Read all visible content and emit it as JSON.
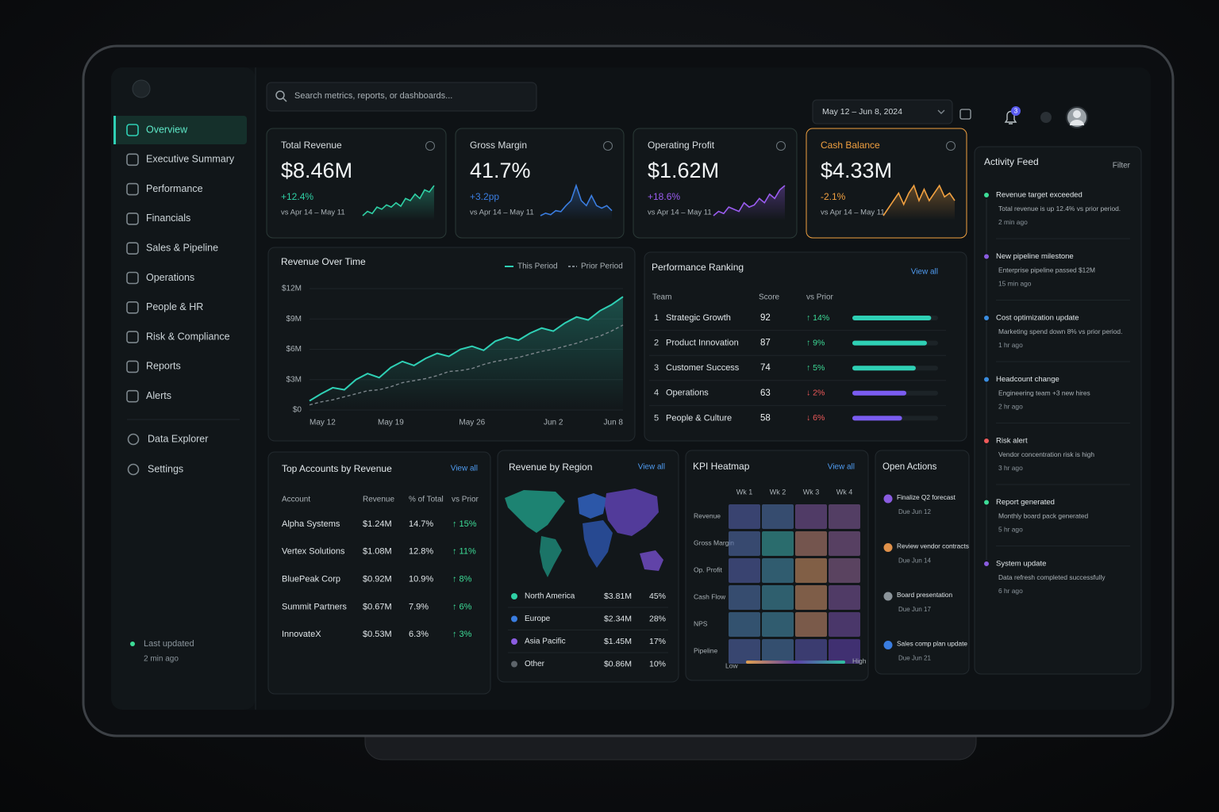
{
  "sidebar": {
    "nav_main": [
      "Overview",
      "Executive Summary",
      "Performance",
      "Financials",
      "Sales & Pipeline",
      "Operations",
      "People & HR",
      "Risk & Compliance",
      "Reports",
      "Alerts"
    ],
    "active": 0,
    "nav_secondary": [
      "Data Explorer",
      "Settings"
    ],
    "status": {
      "label": "Last updated",
      "time": "2 min ago",
      "color": "#3ddc97"
    }
  },
  "header": {
    "search_placeholder": "Search metrics, reports, or dashboards...",
    "date_range": "May 12 – Jun 8, 2024",
    "notification_count": 3
  },
  "kpi_cards": [
    {
      "title": "Total Revenue",
      "value": "$8.46M",
      "delta": "+12.4%",
      "compare": "vs Apr 14 – May 11",
      "color": "#2fd0a5",
      "highlight": false,
      "sparkline": [
        3,
        4,
        3.5,
        5,
        4.5,
        5.5,
        5,
        6,
        5.2,
        7,
        6.5,
        8,
        7,
        9,
        8.5,
        10
      ]
    },
    {
      "title": "Gross Margin",
      "value": "41.7%",
      "delta": "+3.2pp",
      "compare": "vs Apr 14 – May 11",
      "color": "#3a7de0",
      "highlight": false,
      "sparkline": [
        3,
        3.5,
        3.2,
        4,
        3.8,
        5,
        6,
        9,
        6,
        5,
        7,
        5,
        4.5,
        5,
        4
      ]
    },
    {
      "title": "Operating Profit",
      "value": "$1.62M",
      "delta": "+18.6%",
      "compare": "vs Apr 14 – May 11",
      "color": "#9a5cf0",
      "highlight": false,
      "sparkline": [
        2,
        3,
        2.5,
        4,
        3.5,
        3,
        5,
        4,
        4.5,
        6,
        5,
        7,
        6,
        8,
        9
      ]
    },
    {
      "title": "Cash Balance",
      "value": "$4.33M",
      "delta": "-2.1%",
      "compare": "vs Apr 14 – May 11",
      "color": "#f0a040",
      "highlight": true,
      "sparkline": [
        3,
        4,
        5,
        6,
        4.5,
        6,
        7,
        5,
        6.5,
        5,
        6,
        7,
        5.5,
        6,
        5
      ]
    }
  ],
  "revenue_chart": {
    "type": "line",
    "title": "Revenue Over Time",
    "x": [
      "May 12",
      null,
      null,
      null,
      null,
      null,
      null,
      "May 19",
      null,
      null,
      null,
      null,
      null,
      null,
      "May 26",
      null,
      null,
      null,
      null,
      null,
      null,
      "Jun 2",
      null,
      null,
      null,
      null,
      null,
      "Jun 8"
    ],
    "series": [
      {
        "name": "This Period",
        "color": "#2fd0b5",
        "dashed": false,
        "values": [
          0.9,
          1.6,
          2.2,
          2.0,
          3.0,
          3.6,
          3.2,
          4.2,
          4.8,
          4.4,
          5.1,
          5.6,
          5.3,
          6.0,
          6.3,
          5.9,
          6.8,
          7.2,
          6.9,
          7.6,
          8.1,
          7.8,
          8.6,
          9.2,
          8.9,
          9.8,
          10.4,
          11.2
        ]
      },
      {
        "name": "Prior Period",
        "color": "#7d868c",
        "dashed": true,
        "values": [
          0.5,
          0.8,
          1.0,
          1.3,
          1.6,
          1.9,
          2.0,
          2.3,
          2.7,
          2.9,
          3.1,
          3.4,
          3.8,
          3.9,
          4.1,
          4.5,
          4.8,
          5.0,
          5.2,
          5.5,
          5.8,
          6.0,
          6.3,
          6.6,
          7.0,
          7.3,
          7.8,
          8.4
        ]
      }
    ],
    "ylim": [
      0,
      12
    ],
    "yticks": [
      {
        "value": 0,
        "label": "$0"
      },
      {
        "value": 3,
        "label": "$3M"
      },
      {
        "value": 6,
        "label": "$6M"
      },
      {
        "value": 9,
        "label": "$9M"
      },
      {
        "value": 12,
        "label": "$12M"
      }
    ],
    "grid": true
  },
  "performance_ranking": {
    "title": "Performance Ranking",
    "link": "View all",
    "columns": [
      "Team",
      "Score",
      "vs Prior"
    ],
    "xlim": [
      0,
      100
    ],
    "rows": [
      {
        "rank": 1,
        "team": "Strategic Growth",
        "score": 92,
        "vs_prior": "↑ 14%",
        "delta_color": "#3ddc97",
        "bar_color": "#2fd0b5"
      },
      {
        "rank": 2,
        "team": "Product Innovation",
        "score": 87,
        "vs_prior": "↑ 9%",
        "delta_color": "#3ddc97",
        "bar_color": "#2fd0b5"
      },
      {
        "rank": 3,
        "team": "Customer Success",
        "score": 74,
        "vs_prior": "↑ 5%",
        "delta_color": "#3ddc97",
        "bar_color": "#2fd0b5"
      },
      {
        "rank": 4,
        "team": "Operations",
        "score": 63,
        "vs_prior": "↓ 2%",
        "delta_color": "#f05a5a",
        "bar_color": "#7a5cf0"
      },
      {
        "rank": 5,
        "team": "People & Culture",
        "score": 58,
        "vs_prior": "↓ 6%",
        "delta_color": "#f05a5a",
        "bar_color": "#7a5cf0"
      }
    ]
  },
  "top_accounts": {
    "title": "Top Accounts by Revenue",
    "link": "View all",
    "columns": [
      "Account",
      "Revenue",
      "% of Total",
      "vs Prior"
    ],
    "up_color": "#3ddc97",
    "rows": [
      [
        "Alpha Systems",
        "$1.24M",
        "14.7%",
        "↑ 15%"
      ],
      [
        "Vertex Solutions",
        "$1.08M",
        "12.8%",
        "↑ 11%"
      ],
      [
        "BluePeak Corp",
        "$0.92M",
        "10.9%",
        "↑ 8%"
      ],
      [
        "Summit Partners",
        "$0.67M",
        "7.9%",
        "↑ 6%"
      ],
      [
        "InnovateX",
        "$0.53M",
        "6.3%",
        "↑ 3%"
      ]
    ]
  },
  "revenue_by_region": {
    "title": "Revenue by Region",
    "link": "View all",
    "regions": [
      {
        "name": "North America",
        "value": "$3.81M",
        "share": "45%",
        "color": "#2fd0a5"
      },
      {
        "name": "Europe",
        "value": "$2.34M",
        "share": "28%",
        "color": "#3a7de0"
      },
      {
        "name": "Asia Pacific",
        "value": "$1.45M",
        "share": "17%",
        "color": "#8a5ce0"
      },
      {
        "name": "Other",
        "value": "$0.86M",
        "share": "10%",
        "color": "#5d646a"
      }
    ]
  },
  "kpi_heatmap": {
    "title": "KPI Heatmap",
    "link": "View all",
    "columns": [
      "Wk 1",
      "Wk 2",
      "Wk 3",
      "Wk 4"
    ],
    "rows": [
      "Revenue",
      "Gross Margin",
      "Op. Profit",
      "Cash Flow",
      "NPS",
      "Pipeline"
    ],
    "values": [
      [
        62,
        68,
        40,
        38
      ],
      [
        66,
        88,
        18,
        36
      ],
      [
        62,
        78,
        10,
        34
      ],
      [
        68,
        80,
        12,
        40
      ],
      [
        72,
        78,
        14,
        44
      ],
      [
        64,
        70,
        58,
        50
      ]
    ],
    "range": [
      0,
      100
    ],
    "color_scale": [
      "#e0a050",
      "#5e40a8",
      "#2fc0a0"
    ],
    "legend": {
      "low": "Low",
      "high": "High"
    }
  },
  "open_actions": {
    "title": "Open Actions",
    "items": [
      {
        "title": "Finalize Q2 forecast",
        "due": "Due Jun 12",
        "color": "#8a5ce0"
      },
      {
        "title": "Review vendor contracts",
        "due": "Due Jun 14",
        "color": "#e0914a"
      },
      {
        "title": "Board presentation",
        "due": "Due Jun 17",
        "color": "#8b949a"
      },
      {
        "title": "Sales comp plan update",
        "due": "Due Jun 21",
        "color": "#3a7de0"
      }
    ]
  },
  "activity_feed": {
    "title": "Activity Feed",
    "filter": "Filter",
    "items": [
      {
        "title": "Revenue target exceeded",
        "detail": "Total revenue is up 12.4% vs prior period.",
        "time": "2 min ago",
        "color": "#3ddc97"
      },
      {
        "title": "New pipeline milestone",
        "detail": "Enterprise pipeline passed $12M",
        "time": "15 min ago",
        "color": "#8a5ce0"
      },
      {
        "title": "Cost optimization update",
        "detail": "Marketing spend down 8% vs prior period.",
        "time": "1 hr ago",
        "color": "#3a8de0"
      },
      {
        "title": "Headcount change",
        "detail": "Engineering team +3 new hires",
        "time": "2 hr ago",
        "color": "#3a8de0"
      },
      {
        "title": "Risk alert",
        "detail": "Vendor concentration risk is high",
        "time": "3 hr ago",
        "color": "#f05a5a"
      },
      {
        "title": "Report generated",
        "detail": "Monthly board pack generated",
        "time": "5 hr ago",
        "color": "#3ddc97"
      },
      {
        "title": "System update",
        "detail": "Data refresh completed successfully",
        "time": "6 hr ago",
        "color": "#8a5ce0"
      }
    ]
  }
}
